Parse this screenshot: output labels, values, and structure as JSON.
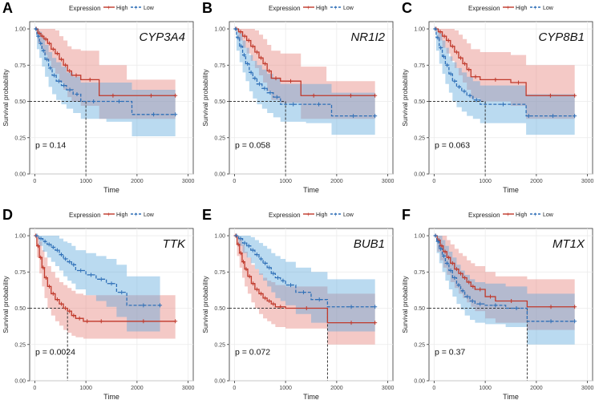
{
  "legend": {
    "title": "Expression",
    "high_label": "High",
    "low_label": "Low"
  },
  "colors": {
    "high": "#c0392b",
    "low": "#2e6fb7",
    "high_fill": "#e57f76",
    "low_fill": "#5aa6db",
    "grid": "#ebebeb"
  },
  "chart_data": [
    {
      "type": "line",
      "panel": "A",
      "gene": "CYP3A4",
      "p_value": "p = 0.14",
      "xlabel": "Time",
      "ylabel": "Survival probability",
      "xlim": [
        -100,
        3100
      ],
      "ylim": [
        0,
        1.05
      ],
      "x_ticks": [
        "0",
        "1000",
        "2000",
        "3000"
      ],
      "y_ticks": [
        "0.00",
        "0.25",
        "0.50",
        "0.75",
        "1.00"
      ],
      "median_time": 1000,
      "series": [
        {
          "name": "High",
          "x": [
            0,
            60,
            120,
            180,
            250,
            320,
            400,
            480,
            560,
            640,
            720,
            900,
            1260,
            1800,
            2750
          ],
          "y": [
            1.0,
            0.97,
            0.95,
            0.93,
            0.9,
            0.86,
            0.83,
            0.79,
            0.75,
            0.71,
            0.68,
            0.65,
            0.54,
            0.54,
            0.54
          ],
          "lower": [
            1.0,
            0.9,
            0.86,
            0.82,
            0.78,
            0.73,
            0.69,
            0.63,
            0.58,
            0.53,
            0.5,
            0.47,
            0.38,
            0.38,
            0.38
          ],
          "upper": [
            1.0,
            1.0,
            1.0,
            1.0,
            1.0,
            1.0,
            0.99,
            0.95,
            0.92,
            0.88,
            0.86,
            0.85,
            0.75,
            0.65,
            0.65
          ]
        },
        {
          "name": "Low",
          "x": [
            0,
            40,
            90,
            140,
            200,
            270,
            340,
            420,
            520,
            620,
            750,
            900,
            1400,
            1900,
            2750
          ],
          "y": [
            1.0,
            0.95,
            0.9,
            0.85,
            0.79,
            0.73,
            0.68,
            0.64,
            0.61,
            0.58,
            0.55,
            0.5,
            0.5,
            0.41,
            0.41
          ],
          "lower": [
            1.0,
            0.86,
            0.8,
            0.74,
            0.67,
            0.6,
            0.55,
            0.51,
            0.48,
            0.45,
            0.42,
            0.38,
            0.36,
            0.26,
            0.26
          ],
          "upper": [
            1.0,
            1.0,
            0.98,
            0.94,
            0.89,
            0.84,
            0.8,
            0.77,
            0.74,
            0.7,
            0.67,
            0.63,
            0.63,
            0.58,
            0.58
          ]
        }
      ]
    },
    {
      "type": "line",
      "panel": "B",
      "gene": "NR1I2",
      "p_value": "p = 0.058",
      "xlabel": "Time",
      "ylabel": "Survival probability",
      "xlim": [
        -100,
        3100
      ],
      "ylim": [
        0,
        1.05
      ],
      "x_ticks": [
        "0",
        "1000",
        "2000",
        "3000"
      ],
      "y_ticks": [
        "0.00",
        "0.25",
        "0.50",
        "0.75",
        "1.00"
      ],
      "median_time": 1000,
      "series": [
        {
          "name": "High",
          "x": [
            0,
            80,
            160,
            240,
            320,
            400,
            480,
            560,
            640,
            720,
            900,
            1300,
            1800,
            2750
          ],
          "y": [
            1.0,
            0.98,
            0.95,
            0.92,
            0.88,
            0.84,
            0.8,
            0.76,
            0.71,
            0.66,
            0.64,
            0.54,
            0.54,
            0.54
          ],
          "lower": [
            1.0,
            0.92,
            0.87,
            0.83,
            0.78,
            0.73,
            0.68,
            0.63,
            0.57,
            0.51,
            0.49,
            0.38,
            0.38,
            0.38
          ],
          "upper": [
            1.0,
            1.0,
            1.0,
            1.0,
            1.0,
            0.99,
            0.96,
            0.93,
            0.89,
            0.85,
            0.83,
            0.74,
            0.64,
            0.64
          ]
        },
        {
          "name": "Low",
          "x": [
            0,
            40,
            100,
            160,
            220,
            290,
            360,
            440,
            540,
            640,
            760,
            900,
            1400,
            1900,
            2750
          ],
          "y": [
            1.0,
            0.94,
            0.88,
            0.82,
            0.76,
            0.7,
            0.66,
            0.62,
            0.59,
            0.56,
            0.53,
            0.48,
            0.48,
            0.4,
            0.4
          ],
          "lower": [
            1.0,
            0.85,
            0.77,
            0.7,
            0.64,
            0.57,
            0.52,
            0.48,
            0.45,
            0.42,
            0.39,
            0.36,
            0.35,
            0.27,
            0.27
          ],
          "upper": [
            1.0,
            1.0,
            0.97,
            0.92,
            0.87,
            0.82,
            0.78,
            0.75,
            0.72,
            0.69,
            0.66,
            0.62,
            0.62,
            0.56,
            0.56
          ]
        }
      ]
    },
    {
      "type": "line",
      "panel": "C",
      "gene": "CYP8B1",
      "p_value": "p = 0.063",
      "xlabel": "Time",
      "ylabel": "Survival probability",
      "xlim": [
        -100,
        3100
      ],
      "ylim": [
        0,
        1.05
      ],
      "x_ticks": [
        "0",
        "1000",
        "2000",
        "3000"
      ],
      "y_ticks": [
        "0.00",
        "0.25",
        "0.50",
        "0.75",
        "1.00"
      ],
      "median_time": 1000,
      "series": [
        {
          "name": "High",
          "x": [
            0,
            80,
            160,
            240,
            320,
            400,
            480,
            560,
            640,
            720,
            900,
            1500,
            1800,
            2750
          ],
          "y": [
            1.0,
            0.98,
            0.95,
            0.92,
            0.88,
            0.84,
            0.8,
            0.76,
            0.72,
            0.67,
            0.65,
            0.63,
            0.54,
            0.54
          ],
          "lower": [
            1.0,
            0.92,
            0.87,
            0.83,
            0.78,
            0.73,
            0.68,
            0.63,
            0.58,
            0.52,
            0.5,
            0.47,
            0.38,
            0.38
          ],
          "upper": [
            1.0,
            1.0,
            1.0,
            1.0,
            1.0,
            0.99,
            0.96,
            0.93,
            0.9,
            0.86,
            0.84,
            0.82,
            0.75,
            0.75
          ]
        },
        {
          "name": "Low",
          "x": [
            0,
            40,
            100,
            160,
            220,
            290,
            360,
            440,
            540,
            640,
            760,
            900,
            1800,
            1900,
            2750
          ],
          "y": [
            1.0,
            0.94,
            0.87,
            0.81,
            0.75,
            0.69,
            0.64,
            0.6,
            0.57,
            0.54,
            0.51,
            0.48,
            0.4,
            0.4,
            0.4
          ],
          "lower": [
            1.0,
            0.85,
            0.76,
            0.69,
            0.62,
            0.56,
            0.5,
            0.46,
            0.43,
            0.4,
            0.38,
            0.35,
            0.27,
            0.27,
            0.27
          ],
          "upper": [
            1.0,
            1.0,
            0.97,
            0.92,
            0.87,
            0.81,
            0.77,
            0.73,
            0.7,
            0.67,
            0.64,
            0.61,
            0.55,
            0.55,
            0.55
          ]
        }
      ]
    },
    {
      "type": "line",
      "panel": "D",
      "gene": "TTK",
      "p_value": "p = 0.0024",
      "xlabel": "Time",
      "ylabel": "Survival probability",
      "xlim": [
        -100,
        3100
      ],
      "ylim": [
        0,
        1.05
      ],
      "x_ticks": [
        "0",
        "1000",
        "2000",
        "3000"
      ],
      "y_ticks": [
        "0.00",
        "0.25",
        "0.50",
        "0.75",
        "1.00"
      ],
      "median_time": 640,
      "series": [
        {
          "name": "High",
          "x": [
            0,
            40,
            90,
            140,
            190,
            250,
            320,
            400,
            480,
            560,
            640,
            720,
            800,
            950,
            1100,
            1500,
            2750
          ],
          "y": [
            1.0,
            0.93,
            0.85,
            0.78,
            0.71,
            0.65,
            0.6,
            0.56,
            0.53,
            0.5,
            0.48,
            0.45,
            0.43,
            0.41,
            0.41,
            0.41,
            0.41
          ],
          "lower": [
            1.0,
            0.85,
            0.74,
            0.65,
            0.57,
            0.5,
            0.45,
            0.41,
            0.38,
            0.35,
            0.33,
            0.31,
            0.3,
            0.29,
            0.29,
            0.29,
            0.29
          ],
          "upper": [
            1.0,
            1.0,
            0.96,
            0.9,
            0.85,
            0.79,
            0.75,
            0.71,
            0.68,
            0.66,
            0.64,
            0.62,
            0.6,
            0.59,
            0.59,
            0.59,
            0.59
          ]
        },
        {
          "name": "Low",
          "x": [
            0,
            80,
            160,
            240,
            320,
            400,
            480,
            560,
            640,
            720,
            800,
            1000,
            1200,
            1400,
            1600,
            1800,
            2450
          ],
          "y": [
            1.0,
            0.98,
            0.96,
            0.94,
            0.92,
            0.9,
            0.87,
            0.84,
            0.82,
            0.8,
            0.76,
            0.73,
            0.7,
            0.67,
            0.61,
            0.52,
            0.52
          ],
          "lower": [
            1.0,
            0.93,
            0.89,
            0.85,
            0.82,
            0.79,
            0.76,
            0.72,
            0.69,
            0.67,
            0.63,
            0.59,
            0.55,
            0.51,
            0.44,
            0.34,
            0.34
          ],
          "upper": [
            1.0,
            1.0,
            1.0,
            1.0,
            1.0,
            1.0,
            0.98,
            0.96,
            0.95,
            0.93,
            0.9,
            0.88,
            0.86,
            0.84,
            0.8,
            0.72,
            0.72
          ]
        }
      ]
    },
    {
      "type": "line",
      "panel": "E",
      "gene": "BUB1",
      "p_value": "p = 0.072",
      "xlabel": "Time",
      "ylabel": "Survival probability",
      "xlim": [
        -100,
        3100
      ],
      "ylim": [
        0,
        1.05
      ],
      "x_ticks": [
        "0",
        "1000",
        "2000",
        "3000"
      ],
      "y_ticks": [
        "0.00",
        "0.25",
        "0.50",
        "0.75",
        "1.00"
      ],
      "median_time": 1820,
      "series": [
        {
          "name": "High",
          "x": [
            0,
            50,
            100,
            150,
            200,
            260,
            330,
            400,
            480,
            560,
            640,
            720,
            800,
            1000,
            1820,
            2750
          ],
          "y": [
            1.0,
            0.94,
            0.88,
            0.82,
            0.77,
            0.72,
            0.67,
            0.63,
            0.6,
            0.57,
            0.55,
            0.53,
            0.51,
            0.5,
            0.4,
            0.4
          ],
          "lower": [
            1.0,
            0.86,
            0.78,
            0.71,
            0.65,
            0.6,
            0.54,
            0.5,
            0.46,
            0.43,
            0.41,
            0.39,
            0.37,
            0.36,
            0.25,
            0.25
          ],
          "upper": [
            1.0,
            1.0,
            0.98,
            0.94,
            0.89,
            0.85,
            0.8,
            0.77,
            0.74,
            0.71,
            0.69,
            0.68,
            0.66,
            0.65,
            0.6,
            0.6
          ]
        },
        {
          "name": "Low",
          "x": [
            0,
            80,
            160,
            240,
            320,
            400,
            480,
            560,
            640,
            720,
            800,
            900,
            1000,
            1200,
            1500,
            1820,
            2750
          ],
          "y": [
            1.0,
            0.98,
            0.95,
            0.93,
            0.9,
            0.87,
            0.84,
            0.81,
            0.78,
            0.74,
            0.71,
            0.69,
            0.66,
            0.61,
            0.56,
            0.51,
            0.51
          ],
          "lower": [
            1.0,
            0.93,
            0.88,
            0.85,
            0.81,
            0.77,
            0.73,
            0.69,
            0.65,
            0.61,
            0.57,
            0.55,
            0.52,
            0.46,
            0.4,
            0.34,
            0.34
          ],
          "upper": [
            1.0,
            1.0,
            1.0,
            1.0,
            0.99,
            0.97,
            0.95,
            0.93,
            0.91,
            0.88,
            0.86,
            0.84,
            0.82,
            0.78,
            0.75,
            0.7,
            0.7
          ]
        }
      ]
    },
    {
      "type": "line",
      "panel": "F",
      "gene": "MT1X",
      "p_value": "p = 0.37",
      "xlabel": "Time",
      "ylabel": "Survival probability",
      "xlim": [
        -100,
        3100
      ],
      "ylim": [
        0,
        1.05
      ],
      "x_ticks": [
        "0",
        "1000",
        "2000",
        "3000"
      ],
      "y_ticks": [
        "0.00",
        "0.25",
        "0.50",
        "0.75",
        "1.00"
      ],
      "median_time": 1820,
      "series": [
        {
          "name": "High",
          "x": [
            0,
            60,
            120,
            180,
            250,
            320,
            400,
            480,
            560,
            640,
            720,
            800,
            1000,
            1200,
            1820,
            2750
          ],
          "y": [
            1.0,
            0.97,
            0.93,
            0.89,
            0.85,
            0.81,
            0.77,
            0.74,
            0.71,
            0.68,
            0.65,
            0.63,
            0.58,
            0.55,
            0.51,
            0.51
          ],
          "lower": [
            1.0,
            0.89,
            0.83,
            0.78,
            0.73,
            0.68,
            0.64,
            0.6,
            0.57,
            0.54,
            0.51,
            0.48,
            0.43,
            0.4,
            0.35,
            0.35
          ],
          "upper": [
            1.0,
            1.0,
            1.0,
            1.0,
            0.97,
            0.94,
            0.91,
            0.88,
            0.86,
            0.83,
            0.81,
            0.79,
            0.75,
            0.72,
            0.7,
            0.7
          ]
        },
        {
          "name": "Low",
          "x": [
            0,
            50,
            100,
            160,
            220,
            290,
            360,
            440,
            520,
            600,
            700,
            800,
            1000,
            1400,
            1820,
            2750
          ],
          "y": [
            1.0,
            0.96,
            0.91,
            0.86,
            0.81,
            0.76,
            0.71,
            0.66,
            0.62,
            0.58,
            0.55,
            0.53,
            0.52,
            0.5,
            0.41,
            0.41
          ],
          "lower": [
            1.0,
            0.88,
            0.81,
            0.75,
            0.69,
            0.63,
            0.58,
            0.53,
            0.49,
            0.45,
            0.42,
            0.4,
            0.39,
            0.37,
            0.25,
            0.25
          ],
          "upper": [
            1.0,
            1.0,
            1.0,
            0.97,
            0.93,
            0.89,
            0.85,
            0.8,
            0.76,
            0.73,
            0.7,
            0.68,
            0.67,
            0.65,
            0.6,
            0.6
          ]
        }
      ]
    }
  ]
}
